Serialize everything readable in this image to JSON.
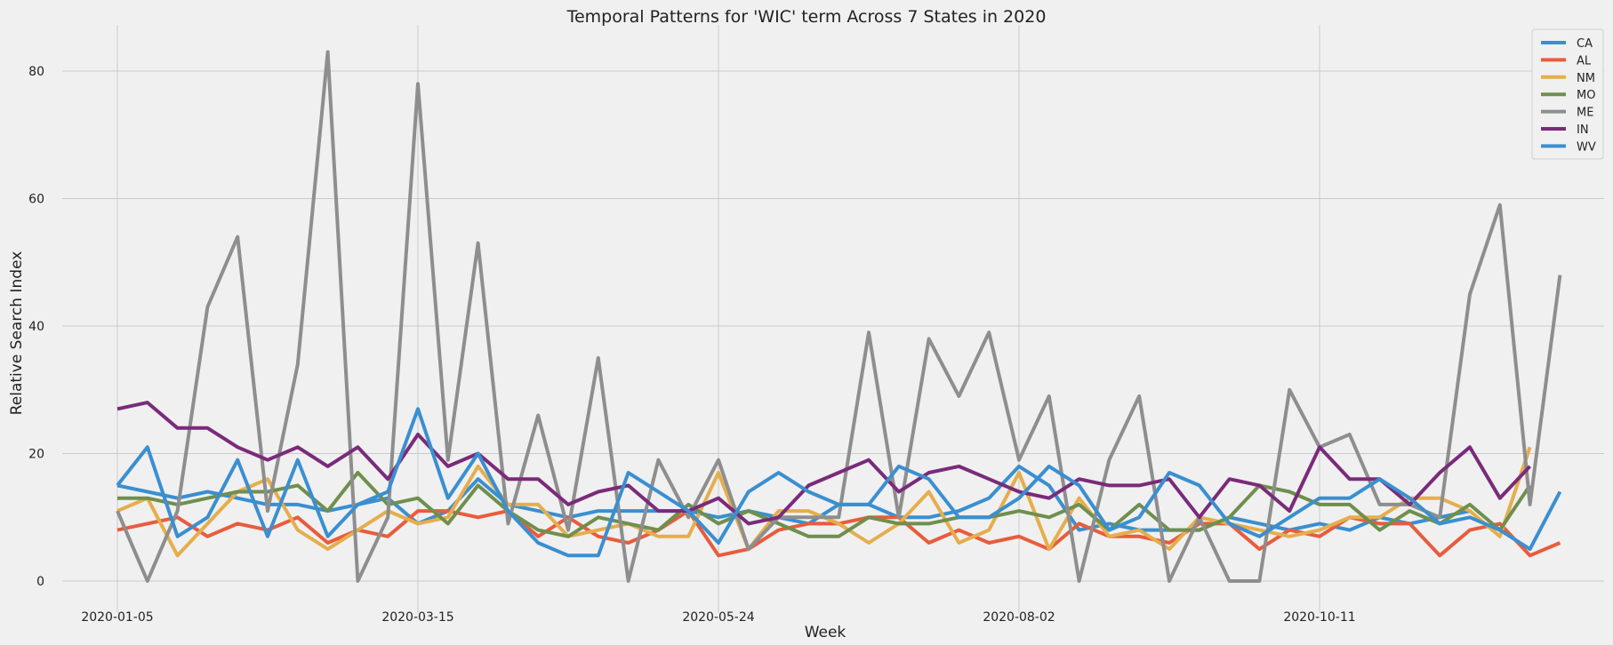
{
  "chart_data": {
    "type": "line",
    "title": "Temporal Patterns for 'WIC' term Across 7 States in 2020",
    "xlabel": "Week",
    "ylabel": "Relative Search Index",
    "x_tick_labels": [
      "2020-01-05",
      "2020-03-15",
      "2020-05-24",
      "2020-08-02",
      "2020-10-11"
    ],
    "x_tick_index": [
      0,
      10,
      20,
      30,
      40
    ],
    "ylim": [
      -3,
      87
    ],
    "y_ticks": [
      0,
      20,
      40,
      60,
      80
    ],
    "grid": true,
    "legend_position": "top-right",
    "series": [
      {
        "name": "CA",
        "color": "#3a8fd0",
        "values": [
          15,
          14,
          13,
          14,
          13,
          12,
          12,
          11,
          12,
          13,
          9,
          11,
          16,
          12,
          11,
          10,
          11,
          11,
          11,
          11,
          10,
          11,
          10,
          9,
          12,
          12,
          10,
          10,
          11,
          13,
          18,
          15,
          8,
          9,
          8,
          8,
          8,
          10,
          9,
          8,
          9,
          8,
          10,
          9,
          10,
          11
        ]
      },
      {
        "name": "AL",
        "color": "#e85c3d",
        "values": [
          8,
          9,
          10,
          7,
          9,
          8,
          10,
          6,
          8,
          7,
          11,
          11,
          10,
          11,
          7,
          10,
          7,
          6,
          8,
          11,
          4,
          5,
          8,
          9,
          9,
          10,
          10,
          6,
          8,
          6,
          7,
          5,
          9,
          7,
          7,
          6,
          9,
          9,
          5,
          8,
          7,
          10,
          9,
          9,
          4,
          8,
          9,
          4,
          6
        ]
      },
      {
        "name": "NM",
        "color": "#e5ae4c",
        "values": [
          11,
          13,
          4,
          9,
          14,
          16,
          8,
          5,
          8,
          11,
          9,
          10,
          18,
          12,
          12,
          7,
          8,
          9,
          7,
          7,
          17,
          5,
          11,
          11,
          9,
          6,
          9,
          14,
          6,
          8,
          17,
          5,
          13,
          7,
          8,
          5,
          10,
          9,
          8,
          7,
          8,
          10,
          10,
          13,
          13,
          11,
          7,
          21
        ]
      },
      {
        "name": "MO",
        "color": "#6f8f4e",
        "values": [
          13,
          13,
          12,
          13,
          14,
          14,
          15,
          11,
          17,
          12,
          13,
          9,
          15,
          11,
          8,
          7,
          10,
          9,
          8,
          12,
          9,
          11,
          9,
          7,
          7,
          10,
          9,
          9,
          10,
          10,
          11,
          10,
          12,
          8,
          12,
          8,
          8,
          10,
          15,
          14,
          12,
          12,
          8,
          11,
          9,
          12,
          8,
          15
        ]
      },
      {
        "name": "ME",
        "color": "#8e8e8e",
        "values": [
          11,
          0,
          11,
          43,
          54,
          11,
          34,
          83,
          0,
          10,
          78,
          19,
          53,
          9,
          26,
          8,
          35,
          0,
          19,
          10,
          19,
          5,
          10,
          10,
          10,
          39,
          10,
          38,
          29,
          39,
          19,
          29,
          0,
          19,
          29,
          0,
          10,
          0,
          0,
          30,
          21,
          23,
          12,
          12,
          10,
          45,
          59,
          12,
          48
        ]
      },
      {
        "name": "IN",
        "color": "#7a2b7a",
        "values": [
          27,
          28,
          24,
          24,
          21,
          19,
          21,
          18,
          21,
          16,
          23,
          18,
          20,
          16,
          16,
          12,
          14,
          15,
          11,
          11,
          13,
          9,
          10,
          15,
          17,
          19,
          14,
          17,
          18,
          16,
          14,
          13,
          16,
          15,
          15,
          16,
          10,
          16,
          15,
          11,
          21,
          16,
          16,
          12,
          17,
          21,
          13,
          18
        ]
      },
      {
        "name": "WV",
        "color": "#3a8fd0",
        "values": [
          15,
          21,
          7,
          10,
          19,
          7,
          19,
          7,
          12,
          14,
          27,
          13,
          20,
          11,
          6,
          4,
          4,
          17,
          14,
          11,
          6,
          14,
          17,
          14,
          12,
          12,
          18,
          16,
          10,
          10,
          13,
          18,
          15,
          8,
          10,
          17,
          15,
          9,
          7,
          10,
          13,
          13,
          16,
          13,
          9,
          10,
          8,
          5,
          14
        ]
      }
    ]
  }
}
